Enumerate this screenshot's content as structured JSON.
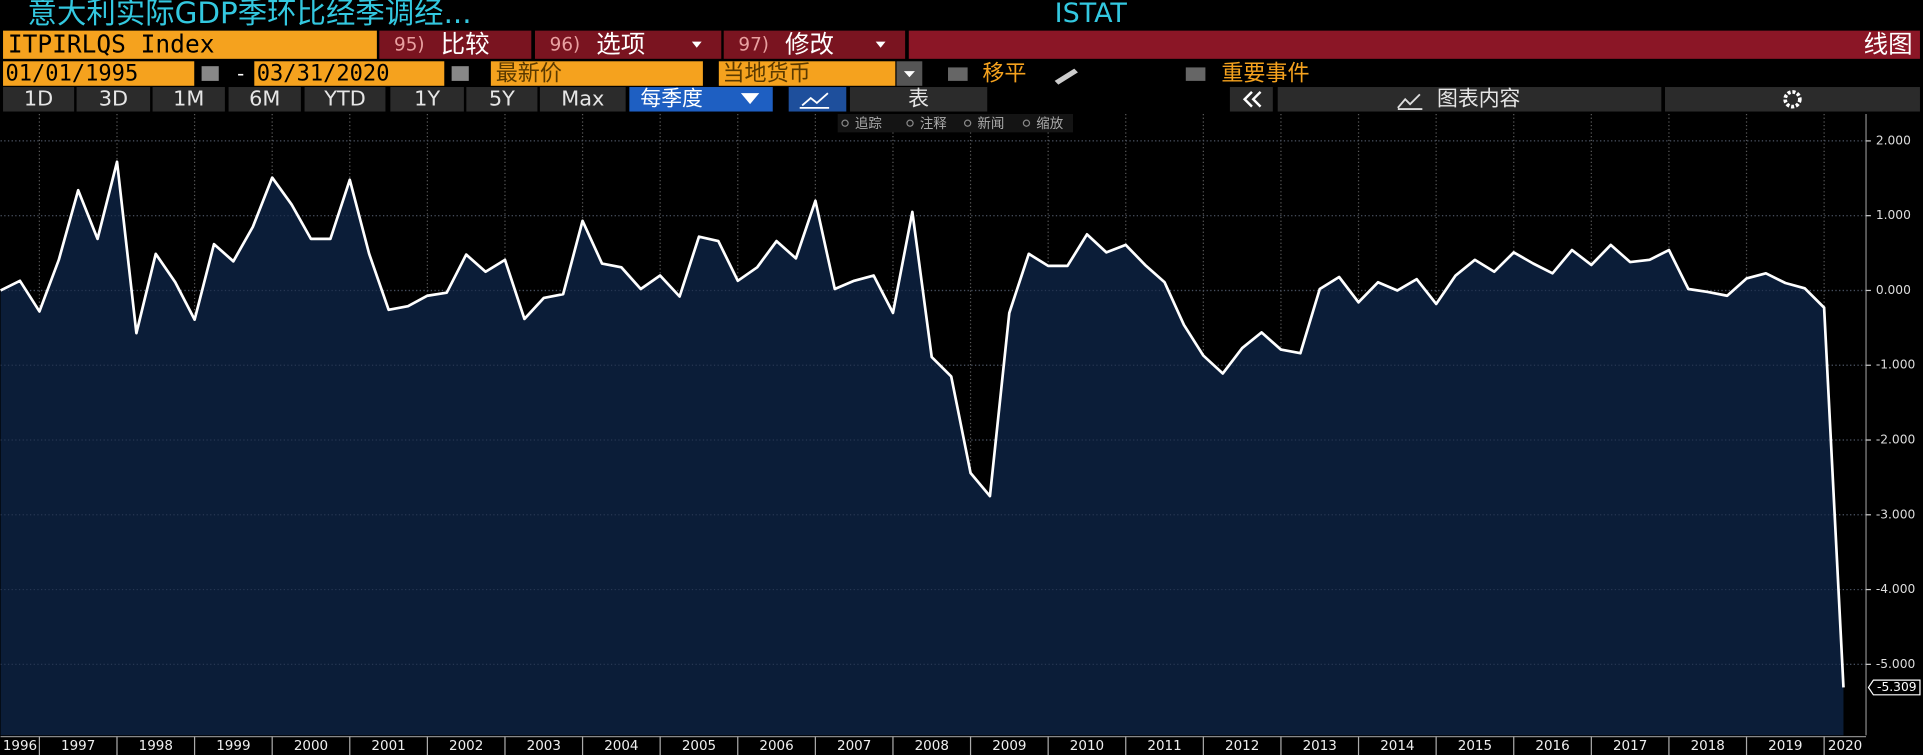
{
  "header": {
    "title": "意大利实际GDP季环比经季调经...",
    "source": "ISTAT",
    "ticker": "ITPIRLQS Index",
    "actions": [
      {
        "num": "95)",
        "label": "比较"
      },
      {
        "num": "96)",
        "label": "选项"
      },
      {
        "num": "97)",
        "label": "修改"
      }
    ],
    "chart_type_label": "线图"
  },
  "controls": {
    "start_date": "01/01/1995",
    "separator": "-",
    "end_date": "03/31/2020",
    "price_field": "最新价",
    "currency": "当地货币",
    "moving_avg": "移平",
    "events": "重要事件"
  },
  "periods": [
    "1D",
    "3D",
    "1M",
    "6M",
    "YTD",
    "1Y",
    "5Y",
    "Max"
  ],
  "frequency": "每季度",
  "table_tab": "表",
  "chart_content": "图表内容",
  "chart_tools": [
    "追踪",
    "注释",
    "新闻",
    "缩放"
  ],
  "chart_data": {
    "type": "area",
    "color": "#ffffff",
    "fill_color": "#0b1d38",
    "grid": true,
    "x": [
      1996.5,
      1996.75,
      1997,
      1997.25,
      1997.5,
      1997.75,
      1998,
      1998.25,
      1998.5,
      1998.75,
      1999,
      1999.25,
      1999.5,
      1999.75,
      2000,
      2000.25,
      2000.5,
      2000.75,
      2001,
      2001.25,
      2001.5,
      2001.75,
      2002,
      2002.25,
      2002.5,
      2002.75,
      2003,
      2003.25,
      2003.5,
      2003.75,
      2004,
      2004.25,
      2004.5,
      2004.75,
      2005,
      2005.25,
      2005.5,
      2005.75,
      2006,
      2006.25,
      2006.5,
      2006.75,
      2007,
      2007.25,
      2007.5,
      2007.75,
      2008,
      2008.25,
      2008.5,
      2008.75,
      2009,
      2009.25,
      2009.5,
      2009.75,
      2010,
      2010.25,
      2010.5,
      2010.75,
      2011,
      2011.25,
      2011.5,
      2011.75,
      2012,
      2012.25,
      2012.5,
      2012.75,
      2013,
      2013.25,
      2013.5,
      2013.75,
      2014,
      2014.25,
      2014.5,
      2014.75,
      2015,
      2015.25,
      2015.5,
      2015.75,
      2016,
      2016.25,
      2016.5,
      2016.75,
      2017,
      2017.25,
      2017.5,
      2017.75,
      2018,
      2018.25,
      2018.5,
      2018.75,
      2019,
      2019.25,
      2019.5,
      2019.75,
      2020,
      2020.25
    ],
    "values": [
      0.0,
      0.13,
      -0.28,
      0.41,
      1.34,
      0.69,
      1.72,
      -0.57,
      0.49,
      0.11,
      -0.39,
      0.62,
      0.39,
      0.85,
      1.51,
      1.15,
      0.69,
      0.69,
      1.48,
      0.49,
      -0.26,
      -0.21,
      -0.07,
      -0.03,
      0.48,
      0.25,
      0.41,
      -0.38,
      -0.1,
      -0.05,
      0.93,
      0.36,
      0.31,
      0.02,
      0.2,
      -0.08,
      0.72,
      0.66,
      0.13,
      0.31,
      0.66,
      0.43,
      1.2,
      0.02,
      0.13,
      0.2,
      -0.3,
      1.05,
      -0.89,
      -1.15,
      -2.44,
      -2.75,
      -0.3,
      0.49,
      0.33,
      0.33,
      0.75,
      0.51,
      0.61,
      0.34,
      0.11,
      -0.46,
      -0.87,
      -1.11,
      -0.77,
      -0.56,
      -0.79,
      -0.84,
      0.02,
      0.18,
      -0.16,
      0.11,
      0.0,
      0.15,
      -0.18,
      0.2,
      0.41,
      0.25,
      0.51,
      0.36,
      0.23,
      0.54,
      0.34,
      0.61,
      0.38,
      0.41,
      0.54,
      0.02,
      -0.02,
      -0.07,
      0.16,
      0.23,
      0.1,
      0.03,
      -0.23,
      -5.309
    ],
    "xlim": [
      1996.5,
      2020.54
    ],
    "xticks": [
      1996,
      1997,
      1998,
      1999,
      2000,
      2001,
      2002,
      2003,
      2004,
      2005,
      2006,
      2007,
      2008,
      2009,
      2010,
      2011,
      2012,
      2013,
      2014,
      2015,
      2016,
      2017,
      2018,
      2019,
      2020
    ],
    "ylim": [
      -5.95,
      2.36
    ],
    "yticks": [
      {
        "value": 2,
        "label": "2.000"
      },
      {
        "value": 1,
        "label": "1.000"
      },
      {
        "value": 0,
        "label": "0.000"
      },
      {
        "value": -1,
        "label": "-1.000"
      },
      {
        "value": -2,
        "label": "-2.000"
      },
      {
        "value": -3,
        "label": "-3.000"
      },
      {
        "value": -4,
        "label": "-4.000"
      },
      {
        "value": -5,
        "label": "-5.000"
      }
    ]
  }
}
